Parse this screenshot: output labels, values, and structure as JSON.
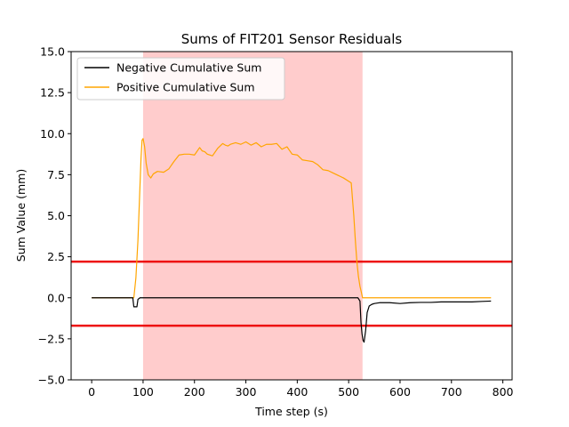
{
  "chart_data": {
    "type": "line",
    "title": "Sums of FIT201 Sensor Residuals",
    "xlabel": "Time step (s)",
    "ylabel": "Sum Value (mm)",
    "xlim": [
      -40,
      818
    ],
    "ylim": [
      -5.0,
      15.0
    ],
    "xticks": [
      0,
      100,
      200,
      300,
      400,
      500,
      600,
      700,
      800
    ],
    "yticks": [
      -5.0,
      -2.5,
      0.0,
      2.5,
      5.0,
      7.5,
      10.0,
      12.5,
      15.0
    ],
    "xtick_labels": [
      "0",
      "100",
      "200",
      "300",
      "400",
      "500",
      "600",
      "700",
      "800"
    ],
    "ytick_labels": [
      "−5.0",
      "−2.5",
      "0.0",
      "2.5",
      "5.0",
      "7.5",
      "10.0",
      "12.5",
      "15.0"
    ],
    "grid": false,
    "legend_position": "top-left",
    "shaded_region": {
      "x": [
        100,
        527
      ],
      "color": "#ffcccc"
    },
    "thresholds": [
      {
        "y": 2.2,
        "color": "#ee1111"
      },
      {
        "y": -1.7,
        "color": "#ee1111"
      }
    ],
    "series": [
      {
        "name": "Negative Cumulative Sum",
        "color": "#000000",
        "x": [
          0,
          80,
          82,
          88,
          90,
          94,
          100,
          200,
          300,
          400,
          500,
          518,
          522,
          524,
          526,
          528,
          530,
          533,
          536,
          540,
          545,
          550,
          560,
          580,
          600,
          620,
          640,
          660,
          680,
          700,
          720,
          740,
          760,
          777
        ],
        "y": [
          0.0,
          0.0,
          -0.55,
          -0.55,
          -0.1,
          0.0,
          0.0,
          0.0,
          0.0,
          0.0,
          0.0,
          0.0,
          -0.2,
          -1.5,
          -2.2,
          -2.6,
          -2.7,
          -2.0,
          -0.9,
          -0.5,
          -0.4,
          -0.35,
          -0.3,
          -0.3,
          -0.35,
          -0.3,
          -0.28,
          -0.28,
          -0.25,
          -0.25,
          -0.25,
          -0.25,
          -0.22,
          -0.2
        ]
      },
      {
        "name": "Positive Cumulative Sum",
        "color": "#ffa500",
        "x": [
          0,
          82,
          86,
          90,
          93,
          96,
          98,
          100,
          103,
          106,
          110,
          115,
          120,
          128,
          140,
          150,
          160,
          170,
          180,
          190,
          200,
          210,
          215,
          220,
          225,
          235,
          245,
          255,
          260,
          265,
          270,
          280,
          290,
          300,
          310,
          320,
          330,
          340,
          350,
          360,
          370,
          380,
          390,
          400,
          410,
          420,
          430,
          440,
          450,
          460,
          470,
          480,
          490,
          500,
          505,
          510,
          513,
          516,
          519,
          522,
          525,
          527,
          530,
          600,
          700,
          777
        ],
        "y": [
          0.0,
          0.0,
          1.2,
          3.5,
          6.0,
          8.5,
          9.6,
          9.7,
          9.2,
          8.2,
          7.5,
          7.3,
          7.55,
          7.7,
          7.65,
          7.85,
          8.3,
          8.7,
          8.75,
          8.75,
          8.7,
          9.15,
          8.95,
          8.9,
          8.75,
          8.65,
          9.1,
          9.4,
          9.3,
          9.25,
          9.35,
          9.45,
          9.35,
          9.5,
          9.3,
          9.45,
          9.2,
          9.35,
          9.35,
          9.4,
          9.05,
          9.2,
          8.75,
          8.7,
          8.4,
          8.35,
          8.3,
          8.1,
          7.8,
          7.75,
          7.6,
          7.45,
          7.3,
          7.1,
          7.0,
          5.0,
          3.5,
          2.2,
          1.3,
          0.7,
          0.3,
          0.0,
          0.0,
          0.0,
          0.0,
          0.0
        ]
      }
    ]
  }
}
